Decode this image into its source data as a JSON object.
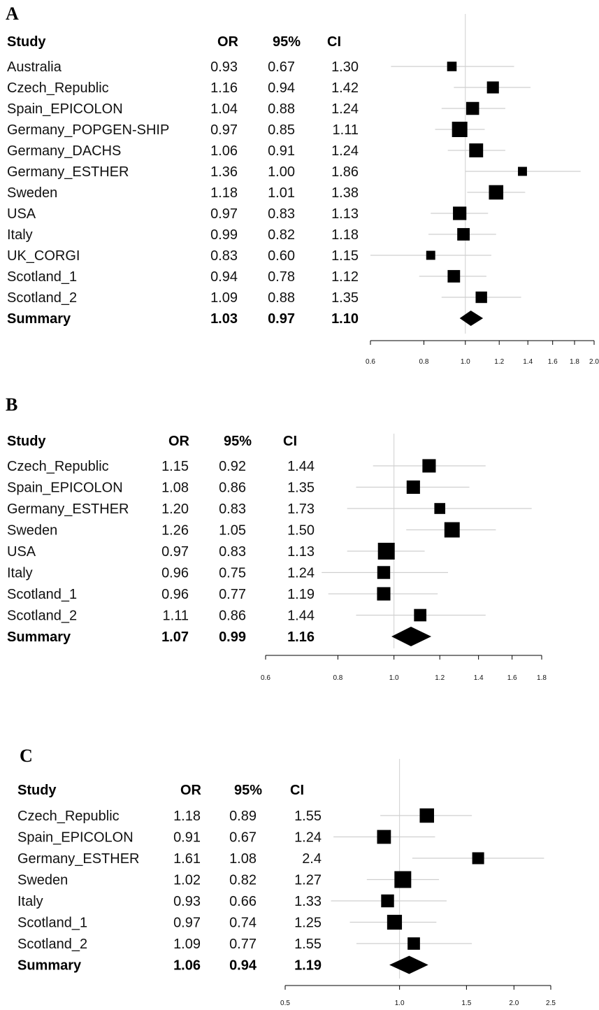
{
  "chart_data": [
    {
      "type": "forest",
      "panel": "A",
      "columns": [
        "Study",
        "OR",
        "95%",
        "CI"
      ],
      "scale": "log",
      "xlim": [
        0.6,
        2.0
      ],
      "ticks": [
        "0.6",
        "0.8",
        "1.0",
        "1.2",
        "1.4",
        "1.6",
        "1.8",
        "2.0"
      ],
      "studies": [
        {
          "name": "Australia",
          "or": "0.93",
          "lo": "0.67",
          "hi": "1.30",
          "weight": 0.4
        },
        {
          "name": "Czech_Republic",
          "or": "1.16",
          "lo": "0.94",
          "hi": "1.42",
          "weight": 0.65
        },
        {
          "name": "Spain_EPICOLON",
          "or": "1.04",
          "lo": "0.88",
          "hi": "1.24",
          "weight": 0.75
        },
        {
          "name": "Germany_POPGEN-SHIP",
          "or": "0.97",
          "lo": "0.85",
          "hi": "1.11",
          "weight": 1.0
        },
        {
          "name": "Germany_DACHS",
          "or": "1.06",
          "lo": "0.91",
          "hi": "1.24",
          "weight": 0.85
        },
        {
          "name": "Germany_ESTHER",
          "or": "1.36",
          "lo": "1.00",
          "hi": "1.86",
          "weight": 0.35
        },
        {
          "name": "Sweden",
          "or": "1.18",
          "lo": "1.01",
          "hi": "1.38",
          "weight": 0.9
        },
        {
          "name": "USA",
          "or": "0.97",
          "lo": "0.83",
          "hi": "1.13",
          "weight": 0.8
        },
        {
          "name": "Italy",
          "or": "0.99",
          "lo": "0.82",
          "hi": "1.18",
          "weight": 0.7
        },
        {
          "name": "UK_CORGI",
          "or": "0.83",
          "lo": "0.60",
          "hi": "1.15",
          "weight": 0.35
        },
        {
          "name": "Scotland_1",
          "or": "0.94",
          "lo": "0.78",
          "hi": "1.12",
          "weight": 0.7
        },
        {
          "name": "Scotland_2",
          "or": "1.09",
          "lo": "0.88",
          "hi": "1.35",
          "weight": 0.6
        }
      ],
      "summary": {
        "name": "Summary",
        "or": "1.03",
        "lo": "0.97",
        "hi": "1.10"
      }
    },
    {
      "type": "forest",
      "panel": "B",
      "columns": [
        "Study",
        "OR",
        "95%",
        "CI"
      ],
      "scale": "log",
      "xlim": [
        0.6,
        1.8
      ],
      "ticks": [
        "0.6",
        "0.8",
        "1.0",
        "1.2",
        "1.4",
        "1.6",
        "1.8"
      ],
      "studies": [
        {
          "name": "Czech_Republic",
          "or": "1.15",
          "lo": "0.92",
          "hi": "1.44",
          "weight": 0.65
        },
        {
          "name": "Spain_EPICOLON",
          "or": "1.08",
          "lo": "0.86",
          "hi": "1.35",
          "weight": 0.65
        },
        {
          "name": "Germany_ESTHER",
          "or": "1.20",
          "lo": "0.83",
          "hi": "1.73",
          "weight": 0.4
        },
        {
          "name": "Sweden",
          "or": "1.26",
          "lo": "1.05",
          "hi": "1.50",
          "weight": 0.85
        },
        {
          "name": "USA",
          "or": "0.97",
          "lo": "0.83",
          "hi": "1.13",
          "weight": 1.0
        },
        {
          "name": "Italy",
          "or": "0.96",
          "lo": "0.75",
          "hi": "1.24",
          "weight": 0.6
        },
        {
          "name": "Scotland_1",
          "or": "0.96",
          "lo": "0.77",
          "hi": "1.19",
          "weight": 0.65
        },
        {
          "name": "Scotland_2",
          "or": "1.11",
          "lo": "0.86",
          "hi": "1.44",
          "weight": 0.55
        }
      ],
      "summary": {
        "name": "Summary",
        "or": "1.07",
        "lo": "0.99",
        "hi": "1.16"
      }
    },
    {
      "type": "forest",
      "panel": "C",
      "columns": [
        "Study",
        "OR",
        "95%",
        "CI"
      ],
      "scale": "log",
      "xlim": [
        0.5,
        2.5
      ],
      "ticks": [
        "0.5",
        "1.0",
        "1.5",
        "2.0",
        "2.5"
      ],
      "studies": [
        {
          "name": "Czech_Republic",
          "or": "1.18",
          "lo": "0.89",
          "hi": "1.55",
          "weight": 0.75
        },
        {
          "name": "Spain_EPICOLON",
          "or": "0.91",
          "lo": "0.67",
          "hi": "1.24",
          "weight": 0.7
        },
        {
          "name": "Germany_ESTHER",
          "or": "1.61",
          "lo": "1.08",
          "hi": "2.4",
          "weight": 0.5
        },
        {
          "name": "Sweden",
          "or": "1.02",
          "lo": "0.82",
          "hi": "1.27",
          "weight": 1.0
        },
        {
          "name": "Italy",
          "or": "0.93",
          "lo": "0.66",
          "hi": "1.33",
          "weight": 0.6
        },
        {
          "name": "Scotland_1",
          "or": "0.97",
          "lo": "0.74",
          "hi": "1.25",
          "weight": 0.8
        },
        {
          "name": "Scotland_2",
          "or": "1.09",
          "lo": "0.77",
          "hi": "1.55",
          "weight": 0.55
        }
      ],
      "summary": {
        "name": "Summary",
        "or": "1.06",
        "lo": "0.94",
        "hi": "1.19"
      }
    }
  ]
}
